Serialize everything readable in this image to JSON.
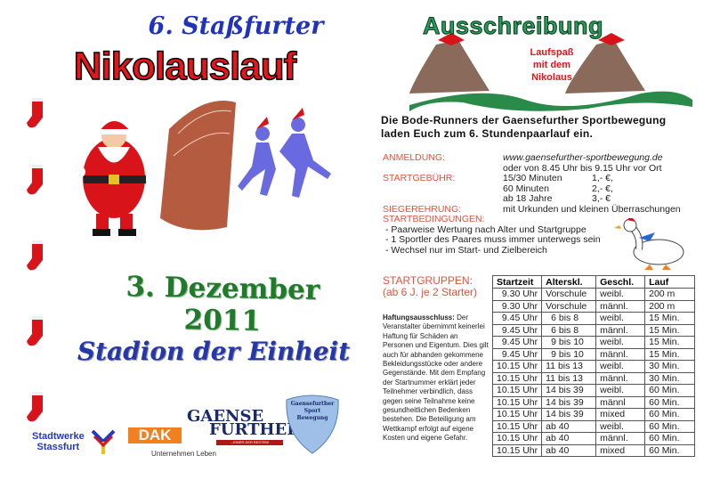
{
  "left": {
    "subtitle": "6. Staßfurter",
    "title": "Nikolauslauf",
    "date": "3. Dezember 2011",
    "venue": "Stadion der Einheit",
    "sponsors": [
      {
        "name": "Stadtwerke Stassfurt",
        "line1": "Stadtwerke",
        "line2": "Stassfurt"
      },
      {
        "name": "DAK",
        "logo": "DAK",
        "tagline": "Unternehmen Leben"
      },
      {
        "name": "Gaensefurther",
        "line1": "GAENSE",
        "line2": "FURTHER",
        "tagline": "...EINER DER BESTEN!"
      },
      {
        "name": "Gaensefurther Sport Bewegung",
        "line1": "Gaensefurther",
        "line2": "Sport",
        "line3": "Bewegung"
      }
    ]
  },
  "header": {
    "title": "Ausschreibung",
    "tagline": [
      "Laufspaß",
      "mit dem",
      "Nikolaus"
    ]
  },
  "intro": [
    "Die Bode-Runners der Gaensefurther Sportbewegung",
    "laden Euch zum 6. Stundenpaarlauf ein."
  ],
  "anmeldung": {
    "label": "ANMELDUNG:",
    "lines": [
      "www.gaensefurther-sportbewegung.de",
      "oder von 8.45 Uhr bis 9.15 Uhr  vor Ort"
    ]
  },
  "startgebuehr": {
    "label": "STARTGEBÜHR:",
    "items": [
      [
        "15/30 Minuten",
        "1,- €,"
      ],
      [
        "60 Minuten",
        "2,- €,"
      ],
      [
        "ab 18 Jahre",
        "3,- €"
      ]
    ]
  },
  "siegerehrung": {
    "label": "SIEGEREHRUNG:",
    "text": "mit Urkunden und kleinen Überraschungen"
  },
  "startbedingungen": {
    "label": "STARTBEDINGUNGEN:",
    "items": [
      "- Paarweise Wertung nach Alter und Startgruppe",
      "- 1 Sportler des Paares muss immer unterwegs sein",
      "- Wechsel nur im Start- und Zielbereich"
    ]
  },
  "startgruppen": {
    "label": "STARTGRUPPEN:",
    "note": "(ab 6 J. je 2 Starter)"
  },
  "haftung": {
    "title": "Haftungsausschluss:",
    "text": " Der Veranstalter übernimmt keinerlei Haftung für Schäden an Personen und Eigentum. Dies gilt auch für abhanden gekommene Bekleidungsstücke oder andere Gegenstände. Mit dem Empfang der Startnummer erklärt jeder Teilnehmer verbindlich, dass gegen seine Teilnahme keine gesundheitlichen Bedenken bestehen. Die Beteiligung am Wettkampf erfolgt auf eigene Kosten und eigene Gefahr."
  },
  "table": {
    "headers": [
      "Startzeit",
      "Alterskl.",
      "Geschl.",
      "Lauf"
    ],
    "rows": [
      [
        "9.30 Uhr",
        "Vorschule",
        "weibl.",
        "200 m"
      ],
      [
        "9.30 Uhr",
        "Vorschule",
        "männl.",
        "200 m"
      ],
      [
        "9.45 Uhr",
        "6 bis 8",
        "weibl.",
        "15 Min."
      ],
      [
        "9.45 Uhr",
        "6 bis 8",
        "männl.",
        "15 Min."
      ],
      [
        "9.45 Uhr",
        "9 bis 10",
        "weibl.",
        "15 Min."
      ],
      [
        "9.45 Uhr",
        "9 bis 10",
        "männl.",
        "15 Min."
      ],
      [
        "10.15 Uhr",
        "11 bis 13",
        "weibl.",
        "30 Min."
      ],
      [
        "10.15 Uhr",
        "11 bis 13",
        "männl.",
        "30 Min."
      ],
      [
        "10.15 Uhr",
        "14 bis 39",
        "weibl.",
        "60 Min."
      ],
      [
        "10.15 Uhr",
        "14 bis 39",
        "männl",
        "60 Min."
      ],
      [
        "10.15 Uhr",
        "14 bis 39",
        "mixed",
        "60 Min."
      ],
      [
        "10.15 Uhr",
        "ab 40",
        "weibl.",
        "60 Min."
      ],
      [
        "10.15 Uhr",
        "ab 40",
        "männl.",
        "60 Min."
      ],
      [
        "10.15 Uhr",
        "ab 40",
        "mixed",
        "60 Min."
      ]
    ]
  },
  "colors": {
    "title_red": "#e8141a",
    "blue": "#2233bb",
    "green": "#1f7a2a",
    "label_orange": "#e8503a"
  }
}
